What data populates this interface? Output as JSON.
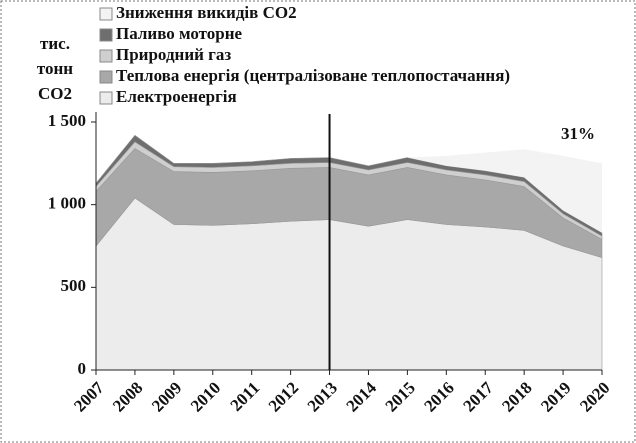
{
  "chart_data": {
    "type": "stacked_area",
    "y_label": [
      "тис.",
      "тонн",
      "CO2"
    ],
    "categories": [
      "2007",
      "2008",
      "2009",
      "2010",
      "2011",
      "2012",
      "2013",
      "2014",
      "2015",
      "2016",
      "2017",
      "2018",
      "2019",
      "2020"
    ],
    "series": [
      {
        "name": "Електроенергія",
        "color": "#ececec",
        "values": [
          750,
          1040,
          880,
          875,
          885,
          900,
          910,
          870,
          910,
          880,
          865,
          845,
          750,
          680
        ]
      },
      {
        "name": "Теплова енергія (централізоване теплопостачання)",
        "color": "#a8a8a8",
        "values": [
          330,
          300,
          320,
          320,
          320,
          320,
          315,
          310,
          315,
          300,
          285,
          265,
          170,
          110
        ]
      },
      {
        "name": "Природний газ",
        "color": "#cfcfcf",
        "values": [
          30,
          40,
          30,
          30,
          30,
          30,
          30,
          30,
          30,
          30,
          30,
          30,
          25,
          20
        ]
      },
      {
        "name": "Паливо моторне",
        "color": "#6e6e6e",
        "values": [
          20,
          40,
          20,
          25,
          25,
          30,
          30,
          25,
          30,
          25,
          25,
          25,
          20,
          20
        ]
      },
      {
        "name": "Зниження викидів CO2",
        "color": "#f3f3f3",
        "values": [
          0,
          0,
          0,
          0,
          0,
          0,
          0,
          0,
          0,
          60,
          110,
          170,
          330,
          420
        ]
      }
    ],
    "annotation": "31%",
    "marker_category": "2013",
    "ylim": [
      0,
      1500
    ],
    "yticks": [
      0,
      500,
      {
        "value": 1000,
        "label": "1 000"
      },
      {
        "value": 1500,
        "label": "1 500"
      }
    ]
  }
}
